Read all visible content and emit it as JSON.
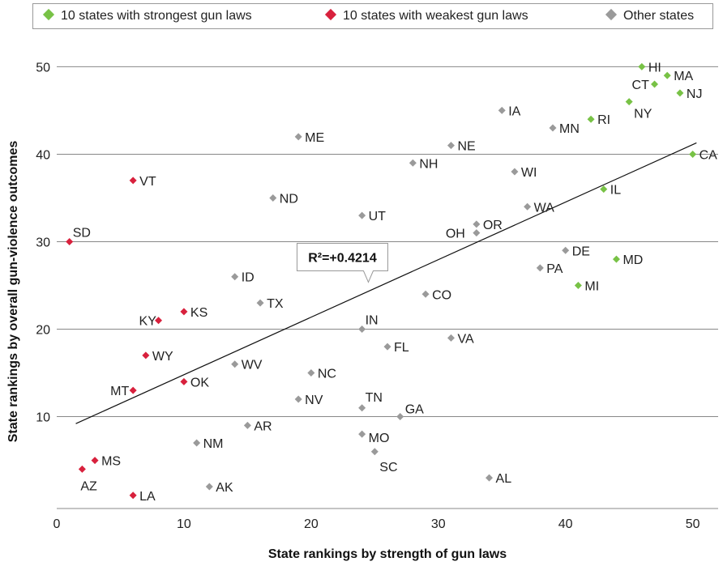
{
  "chart_data": {
    "type": "scatter",
    "xlabel": "State rankings by strength of gun laws",
    "ylabel": "State rankings by overall gun-violence outcomes",
    "xlim": [
      0,
      52
    ],
    "ylim": [
      -0.5,
      53
    ],
    "xticks": [
      "0",
      "10",
      "20",
      "30",
      "40",
      "50"
    ],
    "xtick_values": [
      0,
      10,
      20,
      30,
      40,
      50
    ],
    "yticks": [
      "10",
      "20",
      "30",
      "40",
      "50"
    ],
    "ytick_values": [
      10,
      20,
      30,
      40,
      50
    ],
    "grid": "horizontal",
    "legend_position": "top",
    "legend": [
      {
        "label": "10 states with strongest gun laws",
        "color": "#78c246"
      },
      {
        "label": "10 states with weakest gun laws",
        "color": "#d8213d"
      },
      {
        "label": "Other states",
        "color": "#9a9a9a"
      }
    ],
    "annotation": {
      "text": "R²=+0.4214",
      "x": 24.5,
      "y": 25
    },
    "trendline": {
      "x": [
        1.5,
        50.3
      ],
      "y": [
        9.2,
        41.3
      ],
      "color": "#111111"
    },
    "points": [
      {
        "label": "HI",
        "x": 46,
        "y": 50,
        "group": 0
      },
      {
        "label": "MA",
        "x": 48,
        "y": 49,
        "group": 0
      },
      {
        "label": "CT",
        "x": 47,
        "y": 48,
        "group": 0
      },
      {
        "label": "NJ",
        "x": 49,
        "y": 47,
        "group": 0
      },
      {
        "label": "NY",
        "x": 45,
        "y": 46,
        "group": 0
      },
      {
        "label": "RI",
        "x": 42,
        "y": 44,
        "group": 0
      },
      {
        "label": "CA",
        "x": 50,
        "y": 40,
        "group": 0
      },
      {
        "label": "IL",
        "x": 43,
        "y": 36,
        "group": 0
      },
      {
        "label": "MD",
        "x": 44,
        "y": 28,
        "group": 0
      },
      {
        "label": "MI",
        "x": 41,
        "y": 25,
        "group": 0
      },
      {
        "label": "VT",
        "x": 6,
        "y": 37,
        "group": 1
      },
      {
        "label": "SD",
        "x": 1,
        "y": 30,
        "group": 1
      },
      {
        "label": "KS",
        "x": 10,
        "y": 22,
        "group": 1
      },
      {
        "label": "KY",
        "x": 8,
        "y": 21,
        "group": 1
      },
      {
        "label": "WY",
        "x": 7,
        "y": 17,
        "group": 1
      },
      {
        "label": "OK",
        "x": 10,
        "y": 14,
        "group": 1
      },
      {
        "label": "MT",
        "x": 6,
        "y": 13,
        "group": 1
      },
      {
        "label": "MS",
        "x": 3,
        "y": 5,
        "group": 1
      },
      {
        "label": "AZ",
        "x": 2,
        "y": 4,
        "group": 1
      },
      {
        "label": "LA",
        "x": 6,
        "y": 1,
        "group": 1
      },
      {
        "label": "IA",
        "x": 35,
        "y": 45,
        "group": 2
      },
      {
        "label": "MN",
        "x": 39,
        "y": 43,
        "group": 2
      },
      {
        "label": "ME",
        "x": 19,
        "y": 42,
        "group": 2
      },
      {
        "label": "NE",
        "x": 31,
        "y": 41,
        "group": 2
      },
      {
        "label": "NH",
        "x": 28,
        "y": 39,
        "group": 2
      },
      {
        "label": "WI",
        "x": 36,
        "y": 38,
        "group": 2
      },
      {
        "label": "ND",
        "x": 17,
        "y": 35,
        "group": 2
      },
      {
        "label": "WA",
        "x": 37,
        "y": 34,
        "group": 2
      },
      {
        "label": "UT",
        "x": 24,
        "y": 33,
        "group": 2
      },
      {
        "label": "OR",
        "x": 33,
        "y": 32,
        "group": 2
      },
      {
        "label": "OH",
        "x": 33,
        "y": 31,
        "group": 2
      },
      {
        "label": "DE",
        "x": 40,
        "y": 29,
        "group": 2
      },
      {
        "label": "PA",
        "x": 38,
        "y": 27,
        "group": 2
      },
      {
        "label": "ID",
        "x": 14,
        "y": 26,
        "group": 2
      },
      {
        "label": "CO",
        "x": 29,
        "y": 24,
        "group": 2
      },
      {
        "label": "TX",
        "x": 16,
        "y": 23,
        "group": 2
      },
      {
        "label": "IN",
        "x": 24,
        "y": 20,
        "group": 2
      },
      {
        "label": "VA",
        "x": 31,
        "y": 19,
        "group": 2
      },
      {
        "label": "FL",
        "x": 26,
        "y": 18,
        "group": 2
      },
      {
        "label": "WV",
        "x": 14,
        "y": 16,
        "group": 2
      },
      {
        "label": "NC",
        "x": 20,
        "y": 15,
        "group": 2
      },
      {
        "label": "NV",
        "x": 19,
        "y": 12,
        "group": 2
      },
      {
        "label": "TN",
        "x": 24,
        "y": 11,
        "group": 2
      },
      {
        "label": "GA",
        "x": 27,
        "y": 10,
        "group": 2
      },
      {
        "label": "AR",
        "x": 15,
        "y": 9,
        "group": 2
      },
      {
        "label": "MO",
        "x": 24,
        "y": 8,
        "group": 2
      },
      {
        "label": "NM",
        "x": 11,
        "y": 7,
        "group": 2
      },
      {
        "label": "SC",
        "x": 25,
        "y": 6,
        "group": 2
      },
      {
        "label": "AL",
        "x": 34,
        "y": 3,
        "group": 2
      },
      {
        "label": "AK",
        "x": 12,
        "y": 2,
        "group": 2
      }
    ]
  }
}
